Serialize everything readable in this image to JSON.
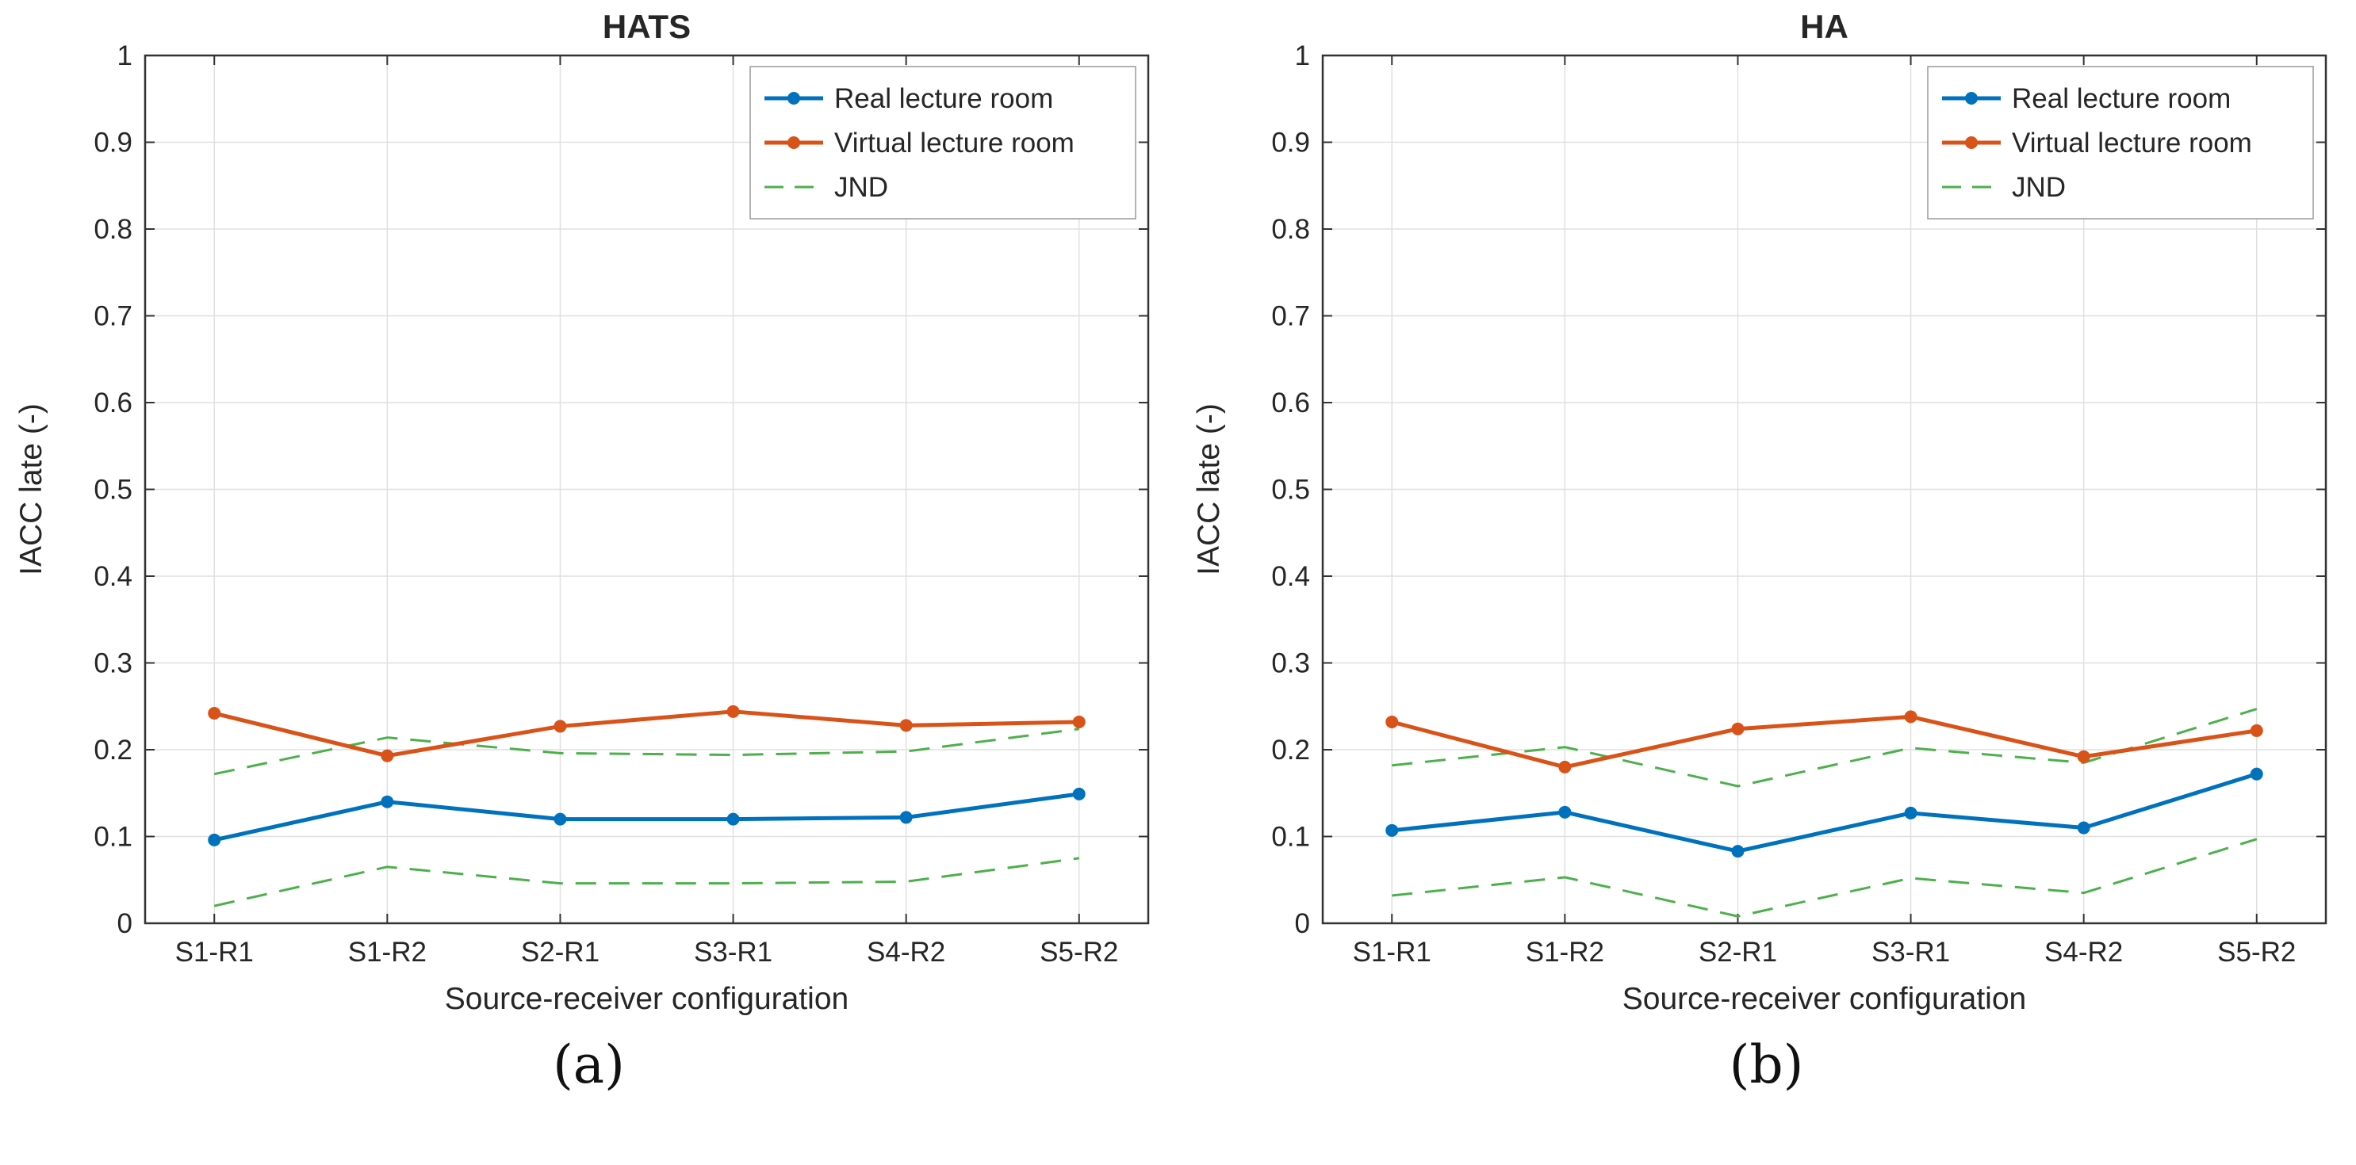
{
  "figure": {
    "sublabels": [
      "(a)",
      "(b)"
    ]
  },
  "style": {
    "axis_color": "#333333",
    "grid_color": "#e0e0e0",
    "text_color": "#262626",
    "legend_border": "#9a9a9a",
    "background": "#ffffff"
  },
  "chart_data": [
    {
      "type": "line",
      "title": "HATS",
      "xlabel": "Source-receiver configuration",
      "ylabel": "IACC late (-)",
      "categories": [
        "S1-R1",
        "S1-R2",
        "S2-R1",
        "S3-R1",
        "S4-R2",
        "S5-R2"
      ],
      "ylim": [
        0,
        1
      ],
      "yticks": [
        0,
        0.1,
        0.2,
        0.3,
        0.4,
        0.5,
        0.6,
        0.7,
        0.8,
        0.9,
        1
      ],
      "grid": true,
      "legend_position": "top-right",
      "legend_entries": [
        "Real lecture room",
        "Virtual lecture room",
        "JND"
      ],
      "series": [
        {
          "name": "Real lecture room",
          "color": "#0072BD",
          "dash": false,
          "marker": true,
          "values": [
            0.096,
            0.14,
            0.12,
            0.12,
            0.122,
            0.149
          ]
        },
        {
          "name": "Virtual lecture room",
          "color": "#D95319",
          "dash": false,
          "marker": true,
          "values": [
            0.242,
            0.193,
            0.227,
            0.244,
            0.228,
            0.232
          ]
        },
        {
          "name": "JND",
          "color": "#4CB04C",
          "dash": true,
          "marker": false,
          "lines": [
            [
              0.172,
              0.214,
              0.196,
              0.194,
              0.198,
              0.224
            ],
            [
              0.02,
              0.065,
              0.046,
              0.046,
              0.048,
              0.075
            ]
          ]
        }
      ]
    },
    {
      "type": "line",
      "title": "HA",
      "xlabel": "Source-receiver configuration",
      "ylabel": "IACC late (-)",
      "categories": [
        "S1-R1",
        "S1-R2",
        "S2-R1",
        "S3-R1",
        "S4-R2",
        "S5-R2"
      ],
      "ylim": [
        0,
        1
      ],
      "yticks": [
        0,
        0.1,
        0.2,
        0.3,
        0.4,
        0.5,
        0.6,
        0.7,
        0.8,
        0.9,
        1
      ],
      "grid": true,
      "legend_position": "top-right",
      "legend_entries": [
        "Real lecture room",
        "Virtual lecture room",
        "JND"
      ],
      "series": [
        {
          "name": "Real lecture room",
          "color": "#0072BD",
          "dash": false,
          "marker": true,
          "values": [
            0.107,
            0.128,
            0.083,
            0.127,
            0.11,
            0.172
          ]
        },
        {
          "name": "Virtual lecture room",
          "color": "#D95319",
          "dash": false,
          "marker": true,
          "values": [
            0.232,
            0.18,
            0.224,
            0.238,
            0.192,
            0.222
          ]
        },
        {
          "name": "JND",
          "color": "#4CB04C",
          "dash": true,
          "marker": false,
          "lines": [
            [
              0.182,
              0.203,
              0.158,
              0.202,
              0.185,
              0.247
            ],
            [
              0.032,
              0.053,
              0.008,
              0.052,
              0.035,
              0.097
            ]
          ]
        }
      ]
    }
  ]
}
